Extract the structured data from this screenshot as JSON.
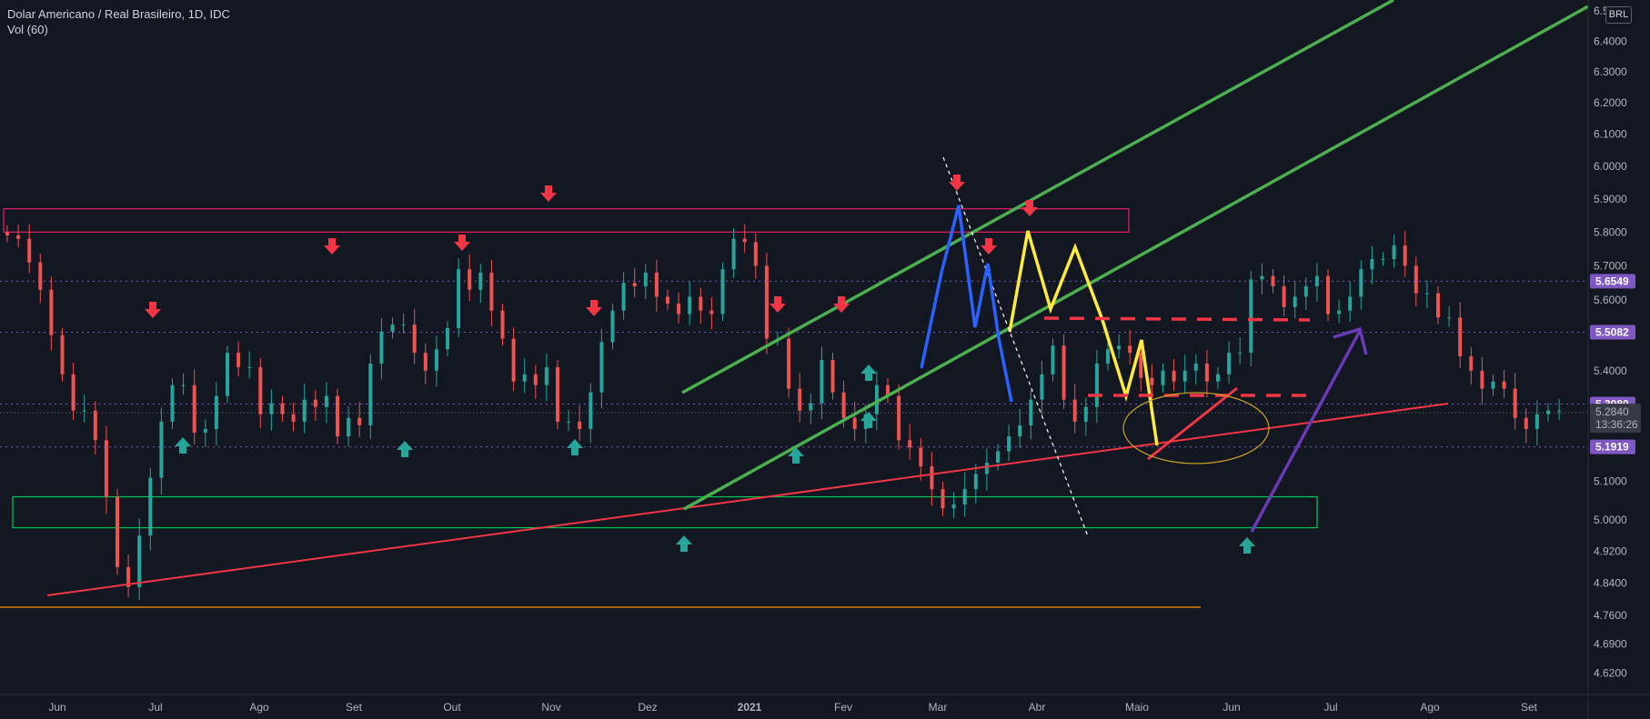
{
  "header": {
    "title": "Dolar Americano / Real Brasileiro, 1D, IDC",
    "indicator": "Vol (60)",
    "currency": "BRL"
  },
  "chart_data": {
    "type": "candlestick",
    "symbol": "Dolar Americano / Real Brasileiro",
    "interval": "1D",
    "exchange": "IDC",
    "price_axis": {
      "ticks": [
        6.5,
        6.4,
        6.3,
        6.2,
        6.1,
        6.0,
        5.9,
        5.8,
        5.7,
        5.6,
        5.4,
        5.1,
        5.0,
        4.92,
        4.84,
        4.76,
        4.69,
        4.62
      ],
      "tick_labels": [
        "6.5000",
        "6.4000",
        "6.3000",
        "6.2000",
        "6.1000",
        "6.0000",
        "5.9000",
        "5.8000",
        "5.7000",
        "5.6000",
        "5.4000",
        "5.1000",
        "5.0000",
        "4.9200",
        "4.8400",
        "4.7600",
        "4.6900",
        "4.6200"
      ],
      "log_scale": true
    },
    "time_axis": {
      "labels": [
        "Jun",
        "Jul",
        "Ago",
        "Set",
        "Out",
        "Nov",
        "Dez",
        "2021",
        "Fev",
        "Mar",
        "Abr",
        "Maio",
        "Jun",
        "Jul",
        "Ago",
        "Set"
      ]
    },
    "price_levels": [
      {
        "value": 5.6549,
        "label": "5.6549",
        "color": "#7e57c2"
      },
      {
        "value": 5.5082,
        "label": "5.5082",
        "color": "#7e57c2"
      },
      {
        "value": 5.308,
        "label": "5.3080",
        "color": "#7e57c2"
      },
      {
        "value": 5.1919,
        "label": "5.1919",
        "color": "#7e57c2"
      }
    ],
    "last_price": {
      "value": 5.284,
      "label": "5.2840",
      "countdown": "13:36:26"
    },
    "series": [
      {
        "name": "close",
        "values": [
          5.79,
          5.78,
          5.71,
          5.63,
          5.5,
          5.39,
          5.29,
          5.29,
          5.21,
          5.06,
          4.88,
          4.83,
          4.96,
          5.11,
          5.26,
          5.36,
          5.36,
          5.23,
          5.24,
          5.33,
          5.45,
          5.41,
          5.41,
          5.28,
          5.31,
          5.28,
          5.26,
          5.32,
          5.3,
          5.33,
          5.22,
          5.27,
          5.25,
          5.42,
          5.51,
          5.53,
          5.53,
          5.45,
          5.4,
          5.46,
          5.52,
          5.69,
          5.63,
          5.68,
          5.57,
          5.49,
          5.37,
          5.39,
          5.36,
          5.41,
          5.26,
          5.26,
          5.24,
          5.34,
          5.48,
          5.57,
          5.65,
          5.64,
          5.68,
          5.61,
          5.59,
          5.56,
          5.61,
          5.57,
          5.56,
          5.69,
          5.78,
          5.77,
          5.7,
          5.49,
          5.49,
          5.35,
          5.29,
          5.31,
          5.43,
          5.34,
          5.27,
          5.24,
          5.28,
          5.36,
          5.33,
          5.21,
          5.19,
          5.14,
          5.08,
          5.03,
          5.04,
          5.08,
          5.12,
          5.15,
          5.18,
          5.22,
          5.25,
          5.32,
          5.39,
          5.47,
          5.32,
          5.26,
          5.3,
          5.42,
          5.46,
          5.47,
          5.45,
          5.38,
          5.36,
          5.4,
          5.37,
          5.4,
          5.42,
          5.37,
          5.39,
          5.45,
          5.45,
          5.66,
          5.67,
          5.64,
          5.58,
          5.61,
          5.64,
          5.67,
          5.56,
          5.57,
          5.61,
          5.69,
          5.72,
          5.72,
          5.76,
          5.7,
          5.62,
          5.62,
          5.55,
          5.55,
          5.44,
          5.4,
          5.35,
          5.37,
          5.35,
          5.27,
          5.24,
          5.28,
          5.29,
          5.29
        ]
      }
    ],
    "annotations": [
      {
        "type": "zone",
        "color": "#e91e63",
        "from": 5.8,
        "to": 5.87
      },
      {
        "type": "zone",
        "color": "#00c853",
        "from": 4.98,
        "to": 5.06
      },
      {
        "type": "trendline",
        "color": "#f23645"
      },
      {
        "type": "channel",
        "color": "#4caf50"
      },
      {
        "type": "projection-arrow",
        "color": "#673ab7"
      },
      {
        "type": "level",
        "value": 4.78,
        "color": "#ff9800"
      }
    ]
  }
}
